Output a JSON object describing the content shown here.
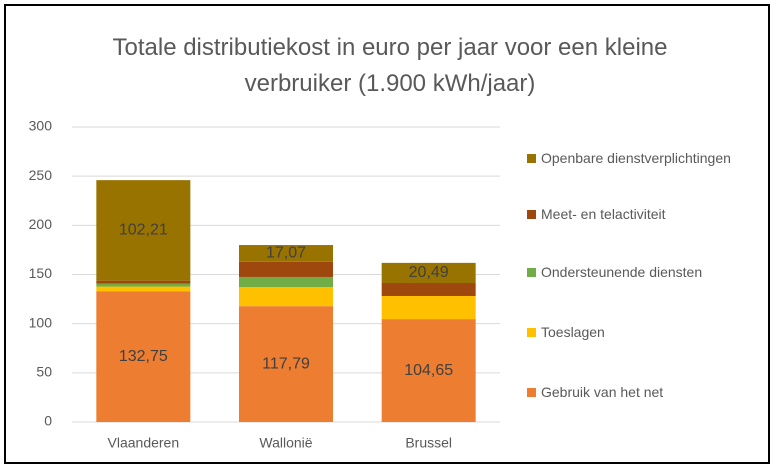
{
  "chart_data": {
    "type": "stacked_bar",
    "title": "Totale distributiekost in euro per jaar voor een kleine verbruiker (1.900 kWh/jaar)",
    "categories": [
      "Vlaanderen",
      "Wallonië",
      "Brussel"
    ],
    "series": [
      {
        "name": "Gebruik van het net",
        "color": "#ED7D31",
        "values": [
          132.75,
          117.79,
          104.65
        ],
        "value_labels": [
          "132,75",
          "117,79",
          "104,65"
        ]
      },
      {
        "name": "Toeslagen",
        "color": "#FFC000",
        "values": [
          5,
          19.5,
          23.5
        ]
      },
      {
        "name": "Ondersteunende diensten",
        "color": "#70AD47",
        "values": [
          3,
          10.2,
          0
        ]
      },
      {
        "name": "Meet- en telactiviteit",
        "color": "#9E480E",
        "values": [
          3,
          15.4,
          13.2
        ]
      },
      {
        "name": "Openbare dienstverplichtingen",
        "color": "#997300",
        "values": [
          102.21,
          17.07,
          20.49
        ],
        "value_labels": [
          "102,21",
          "17,07",
          "20,49"
        ]
      }
    ],
    "ylim": [
      0,
      300
    ],
    "yticks": [
      0,
      50,
      100,
      150,
      200,
      250,
      300
    ],
    "grid": true,
    "legend": "right"
  }
}
